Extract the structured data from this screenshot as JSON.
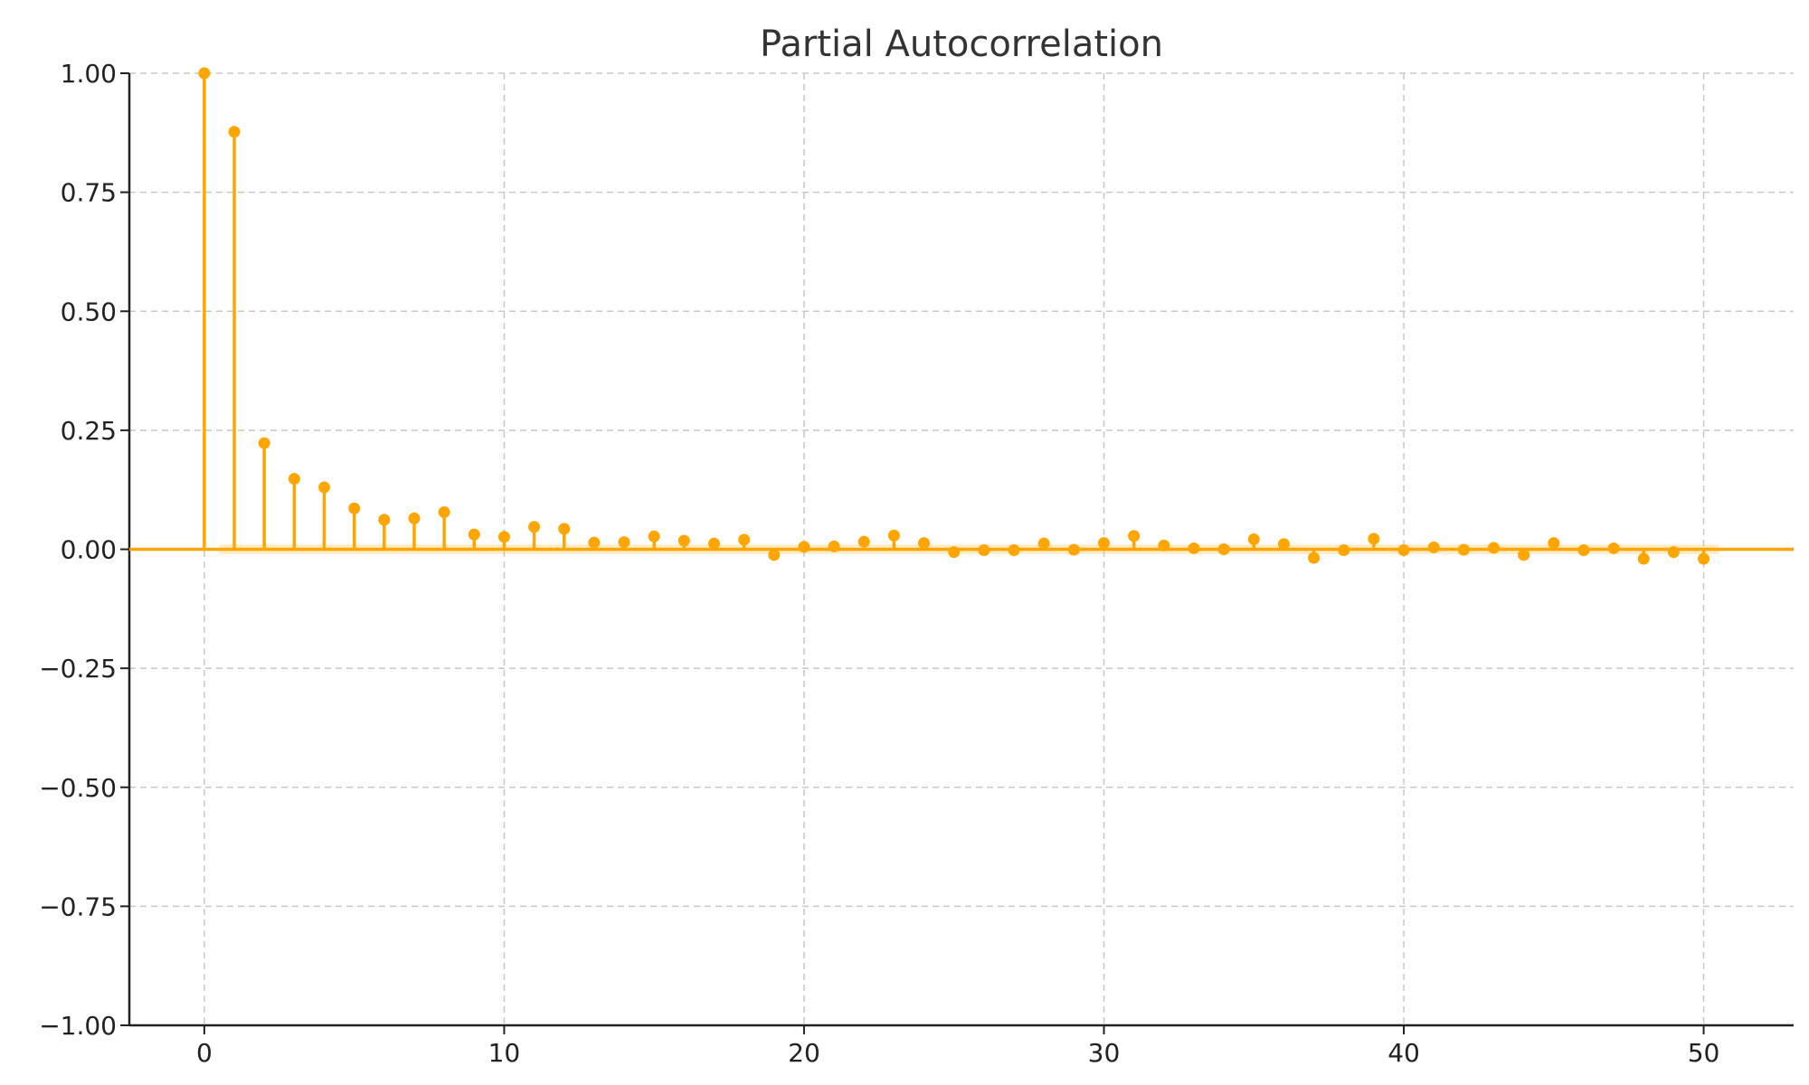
{
  "chart_data": {
    "type": "stem",
    "title": "Partial Autocorrelation",
    "xlabel": "",
    "ylabel": "",
    "xlim": [
      -2.5,
      53
    ],
    "ylim": [
      -1.0,
      1.0
    ],
    "x_ticks": [
      0,
      10,
      20,
      30,
      40,
      50
    ],
    "x_tick_labels": [
      "0",
      "10",
      "20",
      "30",
      "40",
      "50"
    ],
    "y_ticks": [
      -1.0,
      -0.75,
      -0.5,
      -0.25,
      0.0,
      0.25,
      0.5,
      0.75,
      1.0
    ],
    "y_tick_labels": [
      "−1.00",
      "−0.75",
      "−0.50",
      "−0.25",
      "0.00",
      "0.25",
      "0.50",
      "0.75",
      "1.00"
    ],
    "grid": true,
    "color": "#FFA500",
    "confidence_band": 0.01,
    "lags": [
      0,
      1,
      2,
      3,
      4,
      5,
      6,
      7,
      8,
      9,
      10,
      11,
      12,
      13,
      14,
      15,
      16,
      17,
      18,
      19,
      20,
      21,
      22,
      23,
      24,
      25,
      26,
      27,
      28,
      29,
      30,
      31,
      32,
      33,
      34,
      35,
      36,
      37,
      38,
      39,
      40,
      41,
      42,
      43,
      44,
      45,
      46,
      47,
      48,
      49,
      50
    ],
    "values": [
      1.0,
      0.877,
      0.223,
      0.148,
      0.13,
      0.086,
      0.062,
      0.065,
      0.078,
      0.031,
      0.026,
      0.047,
      0.043,
      0.014,
      0.015,
      0.027,
      0.018,
      0.012,
      0.02,
      -0.012,
      0.005,
      0.006,
      0.016,
      0.029,
      0.013,
      -0.006,
      -0.002,
      -0.002,
      0.012,
      -0.001,
      0.013,
      0.028,
      0.008,
      0.002,
      0.0,
      0.021,
      0.011,
      -0.018,
      -0.002,
      0.022,
      -0.002,
      0.004,
      -0.001,
      0.003,
      -0.012,
      0.013,
      -0.002,
      0.002,
      -0.02,
      -0.006,
      -0.02
    ]
  }
}
